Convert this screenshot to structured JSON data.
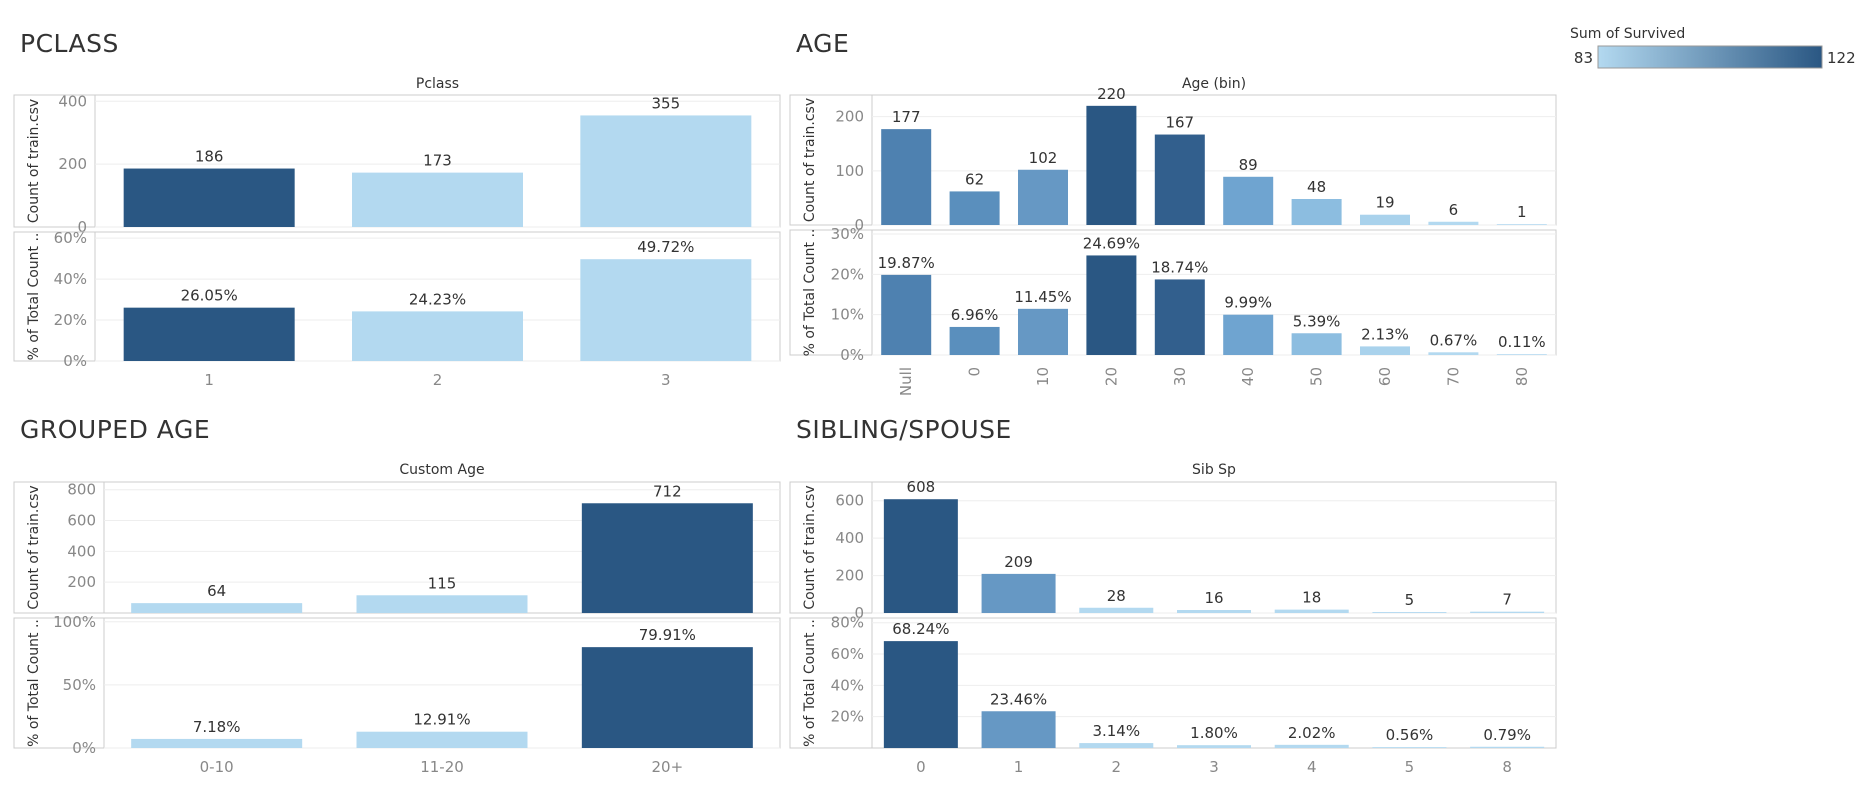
{
  "legend": {
    "title": "Sum of Survived",
    "min_label": "83",
    "max_label": "122",
    "color_low": "#b3d9f0",
    "color_high": "#2a5783"
  },
  "chart_data": [
    {
      "type": "bar",
      "section_title": "PCLASS",
      "column_title": "Pclass",
      "categories": [
        "1",
        "2",
        "3"
      ],
      "series": [
        {
          "ylabel": "Count of train.csv",
          "values": [
            186,
            173,
            355
          ],
          "labels": [
            "186",
            "173",
            "355"
          ],
          "ylim": [
            0,
            420
          ],
          "ticks": [
            0,
            200,
            400
          ],
          "tick_labels": [
            "0",
            "200",
            "400"
          ]
        },
        {
          "ylabel": "% of Total Count ..",
          "values": [
            26.05,
            24.23,
            49.72
          ],
          "labels": [
            "26.05%",
            "24.23%",
            "49.72%"
          ],
          "ylim": [
            0,
            63
          ],
          "ticks": [
            0,
            20,
            40,
            60
          ],
          "tick_labels": [
            "0%",
            "20%",
            "40%",
            "60%"
          ]
        }
      ],
      "bar_colors": [
        "#2a5783",
        "#b3d9f0",
        "#b3d9f0"
      ]
    },
    {
      "type": "bar",
      "section_title": "AGE",
      "column_title": "Age (bin)",
      "categories": [
        "Null",
        "0",
        "10",
        "20",
        "30",
        "40",
        "50",
        "60",
        "70",
        "80"
      ],
      "rotate_categories": true,
      "series": [
        {
          "ylabel": "Count of train.csv",
          "values": [
            177,
            62,
            102,
            220,
            167,
            89,
            48,
            19,
            6,
            1
          ],
          "labels": [
            "177",
            "62",
            "102",
            "220",
            "167",
            "89",
            "48",
            "19",
            "6",
            "1"
          ],
          "ylim": [
            0,
            240
          ],
          "ticks": [
            0,
            100,
            200
          ],
          "tick_labels": [
            "0",
            "100",
            "200"
          ]
        },
        {
          "ylabel": "% of Total Count ..",
          "values": [
            19.87,
            6.96,
            11.45,
            24.69,
            18.74,
            9.99,
            5.39,
            2.13,
            0.67,
            0.11
          ],
          "labels": [
            "19.87%",
            "6.96%",
            "11.45%",
            "24.69%",
            "18.74%",
            "9.99%",
            "5.39%",
            "2.13%",
            "0.67%",
            "0.11%"
          ],
          "ylim": [
            0,
            31
          ],
          "ticks": [
            0,
            10,
            20,
            30
          ],
          "tick_labels": [
            "0%",
            "10%",
            "20%",
            "30%"
          ]
        }
      ],
      "bar_colors": [
        "#4e81b0",
        "#5a8fbd",
        "#6698c4",
        "#2a5783",
        "#325f8d",
        "#6fa4d0",
        "#8cbde0",
        "#a9d2ec",
        "#b3d9f0",
        "#b3d9f0"
      ]
    },
    {
      "type": "bar",
      "section_title": "GROUPED AGE",
      "column_title": "Custom Age",
      "categories": [
        "0-10",
        "11-20",
        "20+"
      ],
      "series": [
        {
          "ylabel": "Count of train.csv",
          "values": [
            64,
            115,
            712
          ],
          "labels": [
            "64",
            "115",
            "712"
          ],
          "ylim": [
            0,
            850
          ],
          "ticks": [
            200,
            400,
            600,
            800
          ],
          "tick_labels": [
            "200",
            "400",
            "600",
            "800"
          ]
        },
        {
          "ylabel": "% of Total Count ..",
          "values": [
            7.18,
            12.91,
            79.91
          ],
          "labels": [
            "7.18%",
            "12.91%",
            "79.91%"
          ],
          "ylim": [
            0,
            103
          ],
          "ticks": [
            0,
            50,
            100
          ],
          "tick_labels": [
            "0%",
            "50%",
            "100%"
          ]
        }
      ],
      "bar_colors": [
        "#b3d9f0",
        "#b3d9f0",
        "#2a5783"
      ]
    },
    {
      "type": "bar",
      "section_title": "SIBLING/SPOUSE",
      "column_title": "Sib Sp",
      "categories": [
        "0",
        "1",
        "2",
        "3",
        "4",
        "5",
        "8"
      ],
      "series": [
        {
          "ylabel": "Count of train.csv",
          "values": [
            608,
            209,
            28,
            16,
            18,
            5,
            7
          ],
          "labels": [
            "608",
            "209",
            "28",
            "16",
            "18",
            "5",
            "7"
          ],
          "ylim": [
            0,
            700
          ],
          "ticks": [
            0,
            200,
            400,
            600
          ],
          "tick_labels": [
            "0",
            "200",
            "400",
            "600"
          ]
        },
        {
          "ylabel": "% of Total Count ..",
          "values": [
            68.24,
            23.46,
            3.14,
            1.8,
            2.02,
            0.56,
            0.79
          ],
          "labels": [
            "68.24%",
            "23.46%",
            "3.14%",
            "1.80%",
            "2.02%",
            "0.56%",
            "0.79%"
          ],
          "ylim": [
            0,
            83
          ],
          "ticks": [
            20,
            40,
            60,
            80
          ],
          "tick_labels": [
            "20%",
            "40%",
            "60%",
            "80%"
          ]
        }
      ],
      "bar_colors": [
        "#2a5783",
        "#6698c4",
        "#b3d9f0",
        "#b3d9f0",
        "#b3d9f0",
        "#b3d9f0",
        "#b3d9f0"
      ]
    }
  ]
}
